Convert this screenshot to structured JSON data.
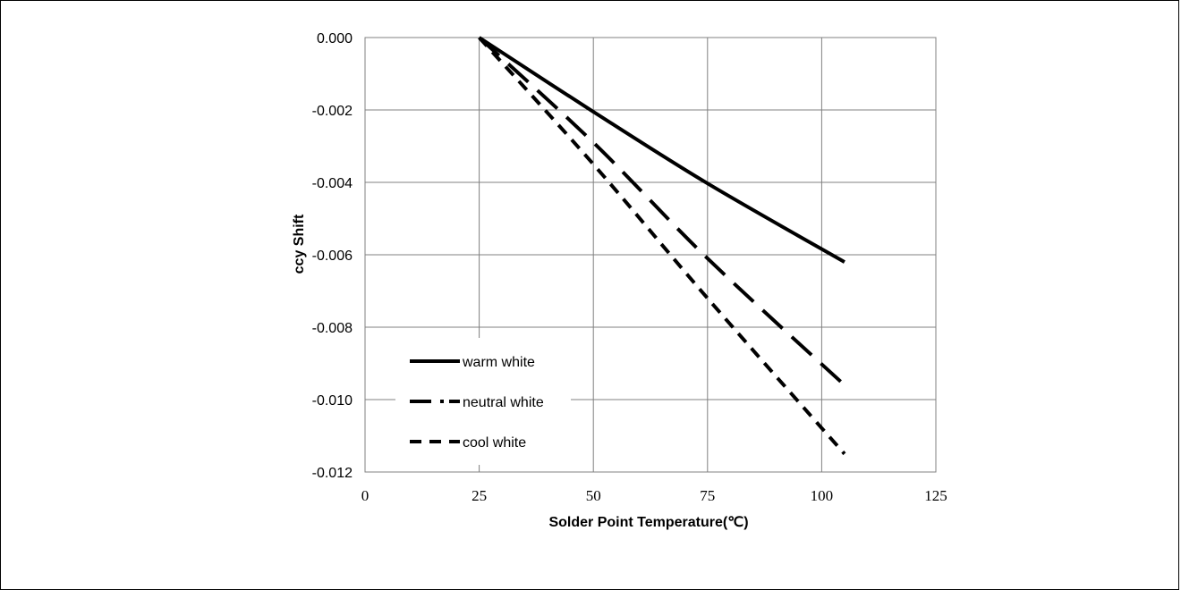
{
  "chart_data": {
    "type": "line",
    "title": "",
    "xlabel": "Solder Point Temperature(℃)",
    "ylabel": "ccy Shift",
    "xlim": [
      0,
      125
    ],
    "ylim": [
      -0.012,
      0.0
    ],
    "x_ticks": [
      0,
      25,
      50,
      75,
      100,
      125
    ],
    "x_tick_labels": [
      "0",
      "25",
      "50",
      "75",
      "100",
      "125"
    ],
    "y_ticks": [
      0.0,
      -0.002,
      -0.004,
      -0.006,
      -0.008,
      -0.01,
      -0.012
    ],
    "y_tick_labels": [
      "0.000",
      "-0.002",
      "-0.004",
      "-0.006",
      "-0.008",
      "-0.010",
      "-0.012"
    ],
    "grid": true,
    "legend_position": "bottom-left",
    "series": [
      {
        "name": "warm white",
        "style": "solid",
        "x": [
          25,
          50,
          75,
          105
        ],
        "y": [
          0.0,
          -0.00205,
          -0.00403,
          -0.0062
        ]
      },
      {
        "name": "neutral white",
        "style": "long-dash",
        "x": [
          25,
          50,
          75,
          105
        ],
        "y": [
          0.0,
          -0.0029,
          -0.0061,
          -0.0096
        ]
      },
      {
        "name": "cool white",
        "style": "short-dash",
        "x": [
          25,
          50,
          75,
          105
        ],
        "y": [
          0.0,
          -0.0035,
          -0.0072,
          -0.0115
        ]
      }
    ],
    "colors": {
      "line": "#000000",
      "grid": "#808080",
      "plot_border": "#808080"
    }
  }
}
